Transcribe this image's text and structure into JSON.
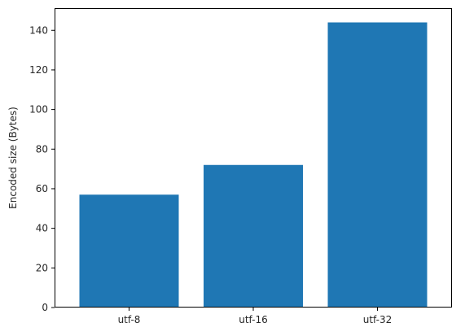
{
  "chart_data": {
    "type": "bar",
    "title": "",
    "xlabel": "",
    "ylabel": "Encoded size (Bytes)",
    "categories": [
      "utf-8",
      "utf-16",
      "utf-32"
    ],
    "values": [
      57,
      72,
      144
    ],
    "ylim": [
      0,
      151.2
    ],
    "yticks": [
      0,
      20,
      40,
      60,
      80,
      100,
      120,
      140
    ],
    "grid": false,
    "bar_color": "#1f77b4",
    "axis_color": "#000000"
  }
}
